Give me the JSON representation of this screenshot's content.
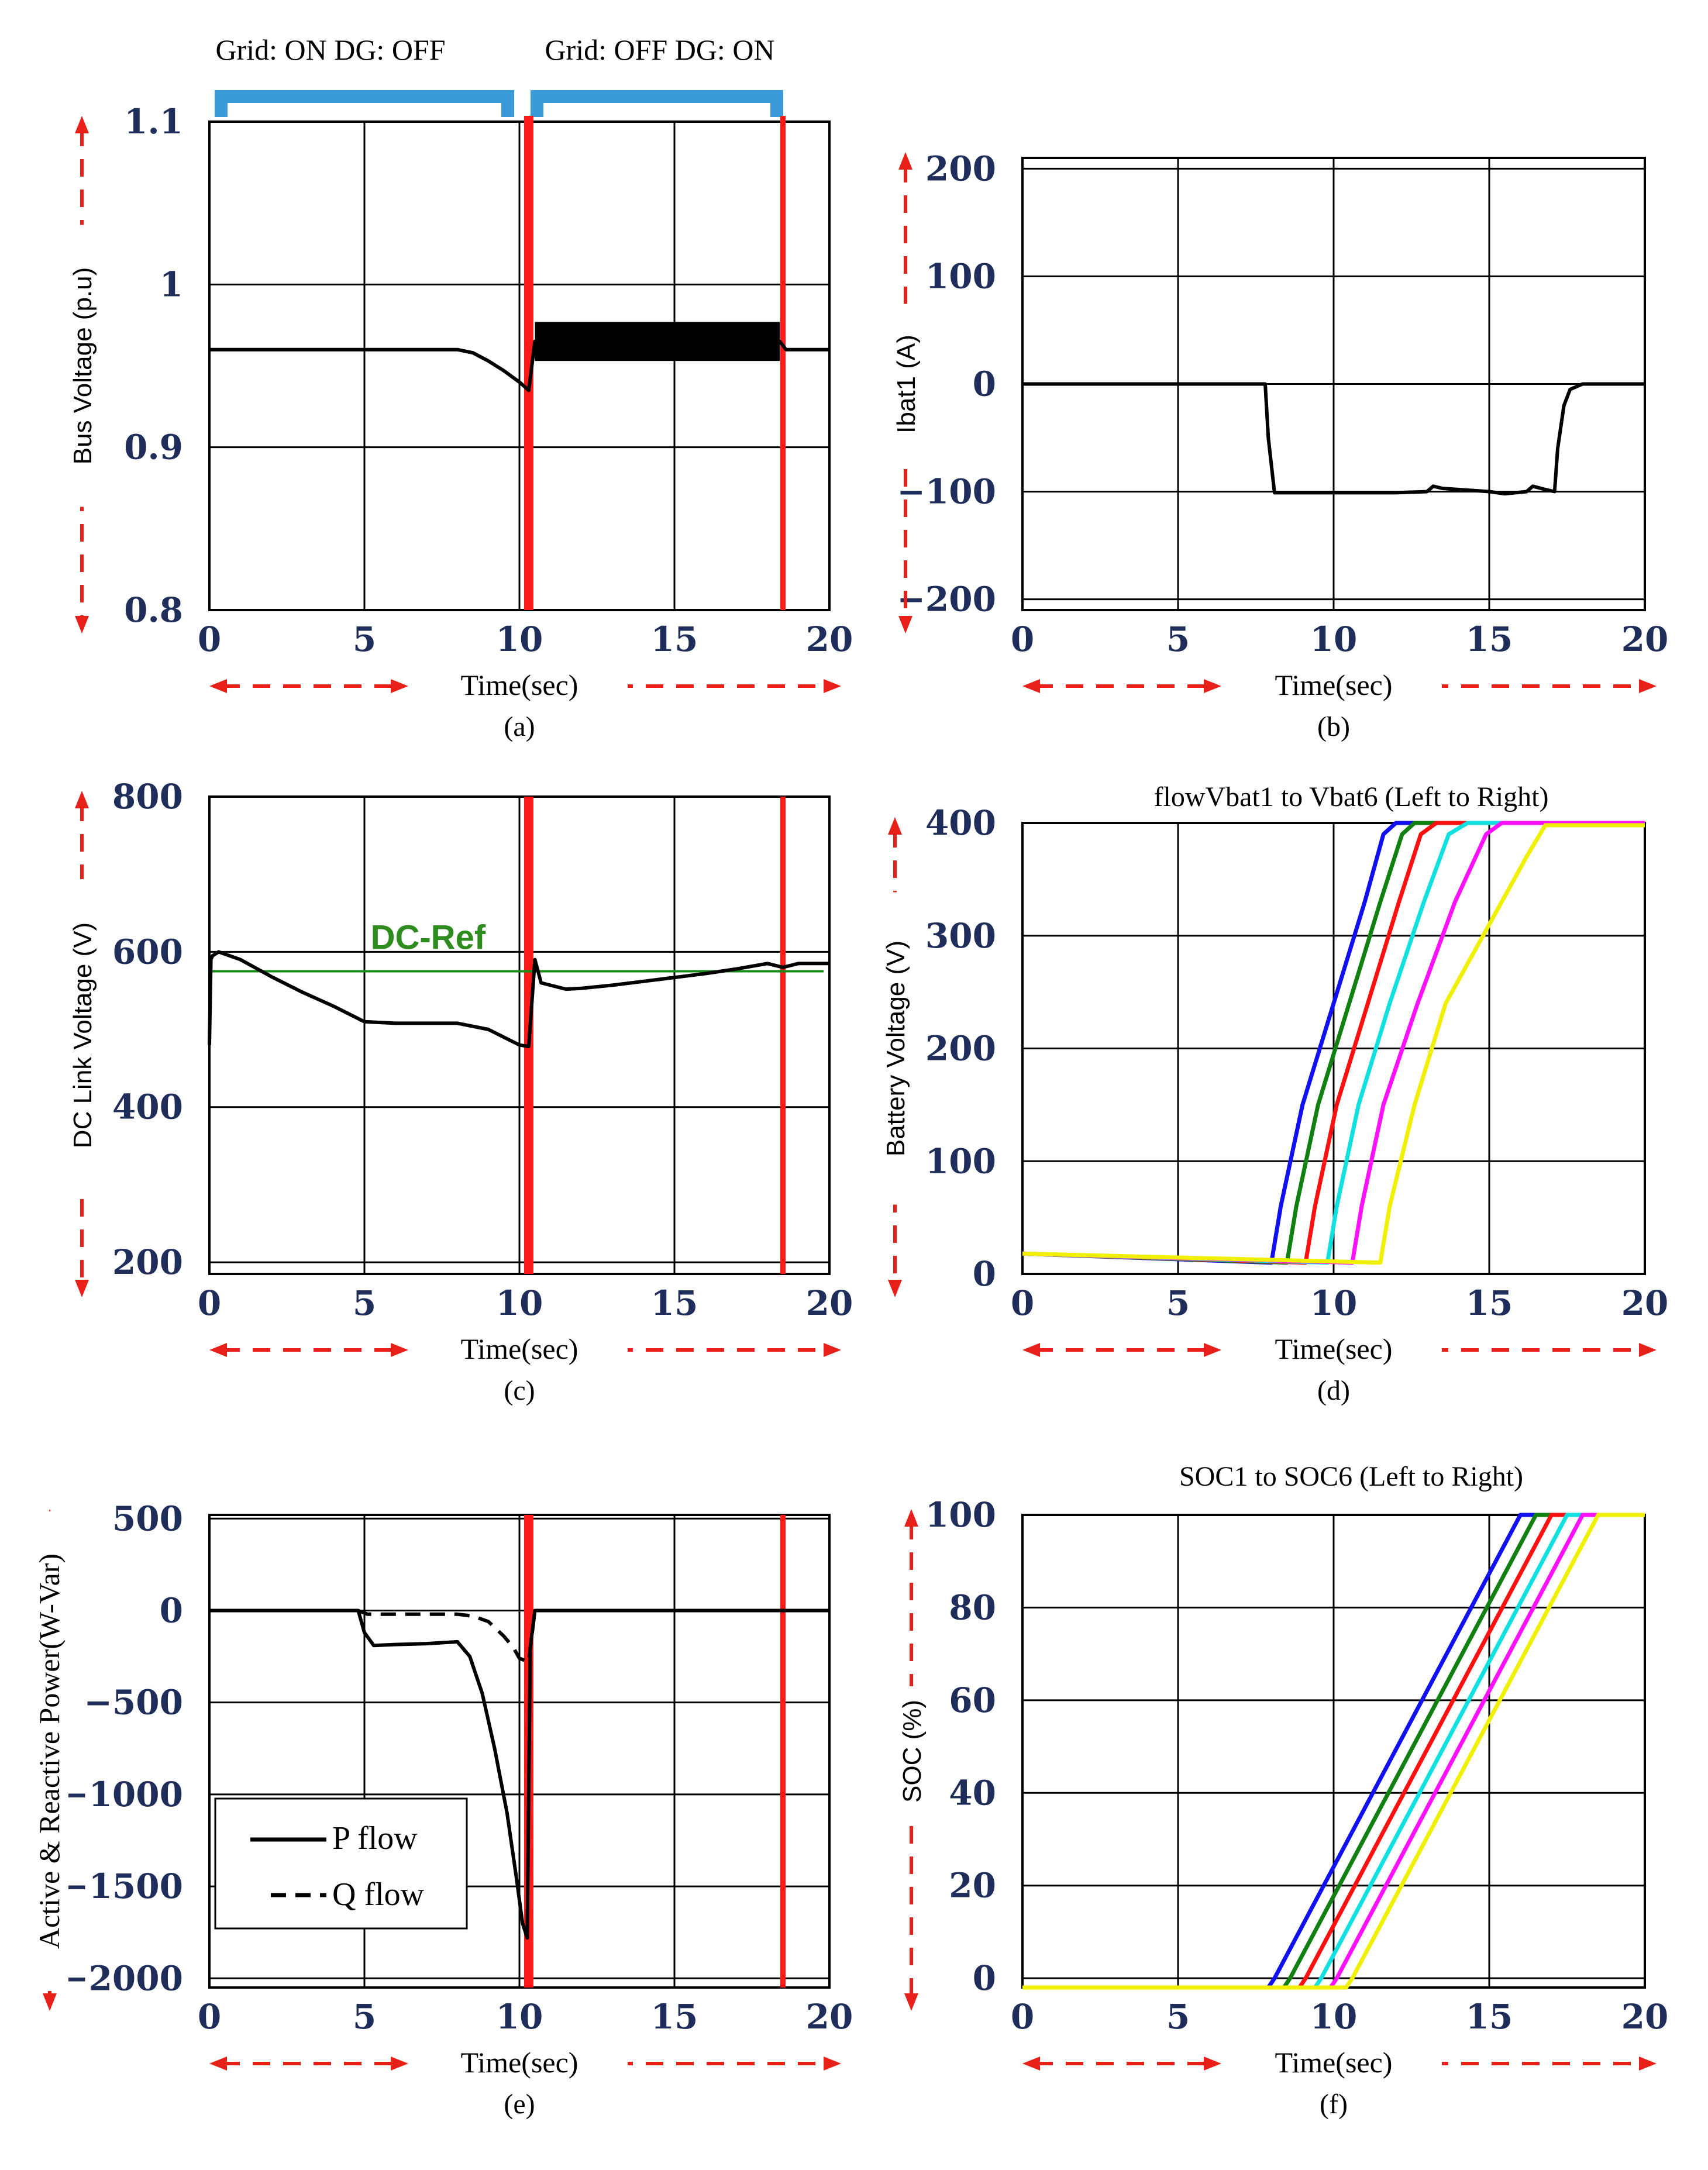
{
  "figure": {
    "mode_labels": [
      "Grid: ON  DG: OFF",
      "Grid: OFF DG: ON"
    ],
    "event_times_sec": [
      10.3,
      18.5
    ]
  },
  "colors": {
    "tick": "#1f2d5a",
    "event_line": "#ff1a1a",
    "arrow": "#e8201a",
    "bracket": "#3b9ad9",
    "reference": "#1a8a1a",
    "series": [
      "#1010f0",
      "#108010",
      "#ff1010",
      "#10e0e0",
      "#ff10ff",
      "#f0f000"
    ]
  },
  "chart_data": [
    {
      "id": "a",
      "type": "line",
      "caption": "(a)",
      "title": "",
      "xlabel": "Time(sec)",
      "ylabel": "Bus Voltage (p.u)",
      "xlim": [
        0,
        20
      ],
      "ylim": [
        0.8,
        1.1
      ],
      "xticks": [
        "0",
        "5",
        "10",
        "15",
        "20"
      ],
      "yticks": [
        "0.8",
        "0.9",
        "1",
        "1.1"
      ],
      "series": [
        {
          "name": "Bus voltage",
          "x": [
            0,
            0.1,
            0.2,
            0.5,
            2,
            5,
            8,
            8.5,
            9,
            9.5,
            10,
            10.3,
            10.5,
            12,
            15,
            18,
            18.4,
            18.6,
            20
          ],
          "y": [
            0.96,
            0.96,
            0.96,
            0.96,
            0.96,
            0.96,
            0.96,
            0.958,
            0.953,
            0.947,
            0.94,
            0.935,
            0.965,
            0.965,
            0.963,
            0.965,
            0.965,
            0.96,
            0.96
          ],
          "band_x": [
            10.5,
            18.4
          ],
          "band_halfwidth": 0.012
        }
      ]
    },
    {
      "id": "b",
      "type": "line",
      "caption": "(b)",
      "title": "",
      "xlabel": "Time(sec)",
      "ylabel": "Ibat1 (A)",
      "xlim": [
        0,
        20
      ],
      "ylim": [
        -210,
        210
      ],
      "xticks": [
        "0",
        "5",
        "10",
        "15",
        "20"
      ],
      "yticks": [
        "−200",
        "−100",
        "0",
        "100",
        "200"
      ],
      "ytick_values": [
        -200,
        -100,
        0,
        100,
        200
      ],
      "series": [
        {
          "name": "Ibat1",
          "x": [
            0,
            7.8,
            7.9,
            8.1,
            10,
            12,
            13,
            13.2,
            13.5,
            14,
            15,
            15.5,
            16.2,
            16.4,
            16.8,
            17.1,
            17.2,
            17.4,
            17.6,
            18,
            20
          ],
          "y": [
            0,
            0,
            -50,
            -101,
            -101,
            -101,
            -100,
            -95,
            -97,
            -98,
            -100,
            -102,
            -100,
            -95,
            -98,
            -100,
            -60,
            -20,
            -5,
            0,
            0
          ]
        }
      ]
    },
    {
      "id": "c",
      "type": "line",
      "caption": "(c)",
      "title": "",
      "xlabel": "Time(sec)",
      "ylabel": "DC Link Voltage (V)",
      "xlim": [
        0,
        20
      ],
      "ylim": [
        185,
        800
      ],
      "xticks": [
        "0",
        "5",
        "10",
        "15",
        "20"
      ],
      "yticks": [
        "200",
        "400",
        "600",
        "800"
      ],
      "ytick_values": [
        200,
        400,
        600,
        800
      ],
      "annotation": "DC-Ref",
      "reference_value": 575,
      "series": [
        {
          "name": "DC link voltage",
          "x": [
            0,
            0.05,
            0.1,
            0.3,
            1,
            2,
            3,
            4,
            5,
            6,
            7,
            8,
            9,
            10,
            10.3,
            10.5,
            10.7,
            11.5,
            12,
            13,
            14,
            15,
            16,
            17,
            18,
            18.5,
            19,
            20
          ],
          "y": [
            480,
            590,
            595,
            600,
            590,
            568,
            548,
            530,
            510,
            508,
            508,
            508,
            500,
            480,
            478,
            590,
            560,
            552,
            553,
            557,
            562,
            567,
            572,
            578,
            585,
            580,
            585,
            585
          ]
        }
      ]
    },
    {
      "id": "d",
      "type": "line",
      "caption": "(d)",
      "title": "flowVbat1 to Vbat6 (Left to Right)",
      "xlabel": "Time(sec)",
      "ylabel": "Battery Voltage (V)",
      "xlim": [
        0,
        20
      ],
      "ylim": [
        0,
        400
      ],
      "xticks": [
        "0",
        "5",
        "10",
        "15",
        "20"
      ],
      "yticks": [
        "0",
        "100",
        "200",
        "300",
        "400"
      ],
      "ytick_values": [
        0,
        100,
        200,
        300,
        400
      ],
      "series": [
        {
          "name": "Vbat1",
          "x": [
            0,
            8.0,
            8.3,
            9.0,
            10.0,
            11.0,
            11.6,
            12.0,
            20
          ],
          "y": [
            18,
            10,
            60,
            150,
            240,
            330,
            390,
            400,
            400
          ]
        },
        {
          "name": "Vbat2",
          "x": [
            0,
            8.5,
            8.8,
            9.5,
            10.5,
            11.5,
            12.2,
            12.6,
            20
          ],
          "y": [
            18,
            10,
            60,
            150,
            240,
            330,
            390,
            400,
            400
          ]
        },
        {
          "name": "Vbat3",
          "x": [
            0,
            9.1,
            9.4,
            10.1,
            11.1,
            12.1,
            12.8,
            13.3,
            20
          ],
          "y": [
            18,
            10,
            60,
            150,
            240,
            330,
            390,
            400,
            400
          ]
        },
        {
          "name": "Vbat4",
          "x": [
            0,
            9.8,
            10.1,
            10.8,
            11.8,
            12.9,
            13.7,
            14.3,
            20
          ],
          "y": [
            18,
            10,
            60,
            150,
            240,
            330,
            390,
            400,
            400
          ]
        },
        {
          "name": "Vbat5",
          "x": [
            0,
            10.6,
            10.9,
            11.6,
            12.7,
            13.9,
            14.9,
            15.4,
            20
          ],
          "y": [
            18,
            10,
            60,
            150,
            240,
            330,
            390,
            400,
            400
          ]
        },
        {
          "name": "Vbat6",
          "x": [
            0,
            11.5,
            11.8,
            12.6,
            13.6,
            14.8,
            16.2,
            16.8,
            20
          ],
          "y": [
            18,
            10,
            60,
            150,
            240,
            300,
            370,
            398,
            398
          ]
        }
      ]
    },
    {
      "id": "e",
      "type": "line",
      "caption": "(e)",
      "title": "",
      "xlabel": "Time(sec)",
      "ylabel": "Active & Reactive Power(W-Var)",
      "xlim": [
        0,
        20
      ],
      "ylim": [
        -2050,
        520
      ],
      "xticks": [
        "0",
        "5",
        "10",
        "15",
        "20"
      ],
      "yticks": [
        "−2000",
        "−1500",
        "−1000",
        "−500",
        "0",
        "500"
      ],
      "ytick_values": [
        -2000,
        -1500,
        -1000,
        -500,
        0,
        500
      ],
      "legend": [
        "P flow",
        "Q flow"
      ],
      "series": [
        {
          "name": "P flow",
          "x": [
            0,
            4.8,
            5.0,
            5.3,
            6,
            7,
            8,
            8.4,
            8.8,
            9.2,
            9.6,
            9.9,
            10.1,
            10.25,
            10.35,
            10.5,
            12,
            15,
            18,
            20
          ],
          "y": [
            0,
            0,
            -120,
            -190,
            -185,
            -180,
            -170,
            -250,
            -450,
            -750,
            -1100,
            -1450,
            -1700,
            -1780,
            -200,
            0,
            0,
            0,
            0,
            0
          ]
        },
        {
          "name": "Q flow",
          "x": [
            0,
            4.8,
            5.1,
            6,
            7,
            8,
            8.5,
            9.0,
            9.5,
            9.8,
            10.0,
            10.3,
            10.5,
            12,
            15,
            18,
            20
          ],
          "y": [
            0,
            0,
            -20,
            -20,
            -20,
            -20,
            -30,
            -60,
            -140,
            -200,
            -260,
            -280,
            0,
            0,
            0,
            0,
            0
          ]
        }
      ]
    },
    {
      "id": "f",
      "type": "line",
      "caption": "(f)",
      "title": "SOC1 to SOC6 (Left to Right)",
      "xlabel": "Time(sec)",
      "ylabel": "SOC (%)",
      "xlim": [
        0,
        20
      ],
      "ylim": [
        -2,
        100
      ],
      "xticks": [
        "0",
        "5",
        "10",
        "15",
        "20"
      ],
      "yticks": [
        "0",
        "20",
        "40",
        "60",
        "80",
        "100"
      ],
      "ytick_values": [
        0,
        20,
        40,
        60,
        80,
        100
      ],
      "series": [
        {
          "name": "SOC1",
          "x": [
            0,
            7.9,
            8.1,
            16.0,
            20
          ],
          "y": [
            -2,
            -2,
            0,
            100,
            100
          ]
        },
        {
          "name": "SOC2",
          "x": [
            0,
            8.4,
            8.6,
            16.5,
            20
          ],
          "y": [
            -2,
            -2,
            0,
            100,
            100
          ]
        },
        {
          "name": "SOC3",
          "x": [
            0,
            8.9,
            9.1,
            17.0,
            20
          ],
          "y": [
            -2,
            -2,
            0,
            100,
            100
          ]
        },
        {
          "name": "SOC4",
          "x": [
            0,
            9.4,
            9.6,
            17.5,
            20
          ],
          "y": [
            -2,
            -2,
            0,
            100,
            100
          ]
        },
        {
          "name": "SOC5",
          "x": [
            0,
            9.9,
            10.1,
            18.0,
            20
          ],
          "y": [
            -2,
            -2,
            0,
            100,
            100
          ]
        },
        {
          "name": "SOC6",
          "x": [
            0,
            10.4,
            10.6,
            18.5,
            20
          ],
          "y": [
            -2,
            -2,
            0,
            100,
            100
          ]
        }
      ]
    }
  ]
}
